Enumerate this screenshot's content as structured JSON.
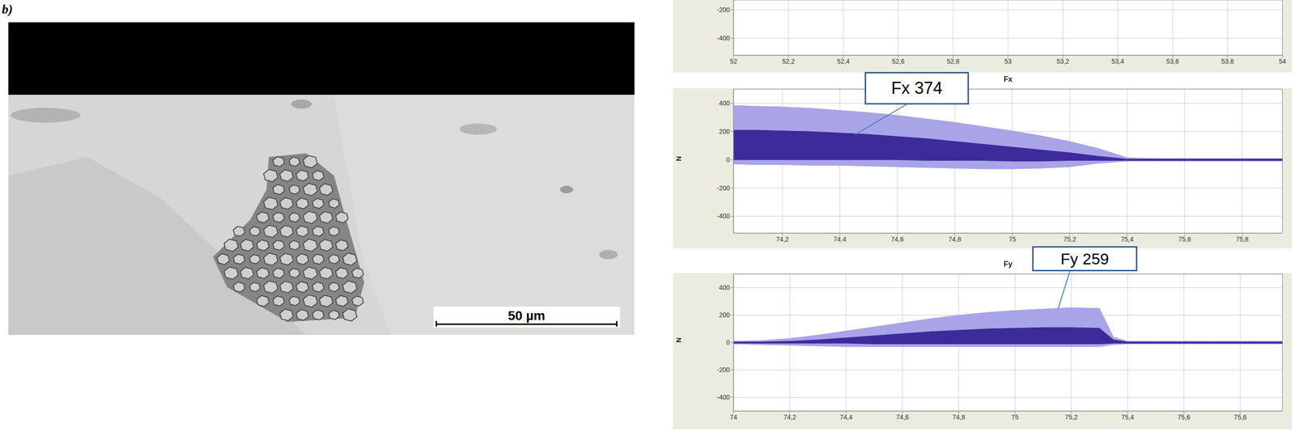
{
  "figure_label": "b)",
  "micrograph": {
    "scale_bar": "50 µm"
  },
  "chart_data": [
    {
      "type": "line",
      "xlim": [
        52,
        54
      ],
      "xticks": [
        52,
        {
          "value": 52.2,
          "label": "52,2"
        },
        {
          "value": 52.4,
          "label": "52,4"
        },
        {
          "value": 52.6,
          "label": "52,6"
        },
        {
          "value": 52.8,
          "label": "52,8"
        },
        53,
        {
          "value": 53.2,
          "label": "53,2"
        },
        {
          "value": 53.4,
          "label": "53,4"
        },
        {
          "value": 53.6,
          "label": "53,6"
        },
        {
          "value": 53.8,
          "label": "53,8"
        },
        54
      ],
      "ylim": [
        -520,
        -130
      ],
      "yticks": [
        -400,
        -200
      ],
      "grid": true
    },
    {
      "type": "area",
      "title": "Fx",
      "y_label": "N",
      "annotation": "Fx 374",
      "xlim": [
        74.03,
        75.94
      ],
      "xticks": [
        {
          "value": 74.2,
          "label": "74,2"
        },
        {
          "value": 74.4,
          "label": "74,4"
        },
        {
          "value": 74.6,
          "label": "74,6"
        },
        {
          "value": 74.8,
          "label": "74,8"
        },
        75,
        {
          "value": 75.2,
          "label": "75,2"
        },
        {
          "value": 75.4,
          "label": "75,4"
        },
        {
          "value": 75.6,
          "label": "75,6"
        },
        {
          "value": 75.8,
          "label": "75,8"
        }
      ],
      "ylim": [
        -520,
        500
      ],
      "yticks": [
        -400,
        -200,
        0,
        200,
        400
      ],
      "grid": true,
      "x": [
        74.03,
        74.1,
        74.2,
        74.3,
        74.4,
        74.5,
        74.6,
        74.7,
        74.8,
        74.9,
        75.0,
        75.1,
        75.2,
        75.3,
        75.4,
        75.5,
        75.6,
        75.7,
        75.8,
        75.94
      ],
      "series": [
        {
          "color": "#a9a3e8",
          "low": [
            -30,
            -35,
            -35,
            -40,
            -40,
            -45,
            -50,
            -55,
            -60,
            -65,
            -65,
            -60,
            -50,
            -25,
            -10,
            -10,
            -10,
            -10,
            -10,
            -10
          ],
          "high": [
            385,
            380,
            375,
            365,
            350,
            335,
            315,
            290,
            265,
            235,
            205,
            170,
            130,
            80,
            15,
            10,
            10,
            10,
            10,
            10
          ]
        },
        {
          "color": "#3d2b9c",
          "low": [
            0,
            0,
            0,
            0,
            0,
            0,
            0,
            -5,
            -5,
            -5,
            -10,
            -10,
            -5,
            -5,
            -5,
            -5,
            -5,
            -5,
            -5,
            -5
          ],
          "high": [
            210,
            210,
            205,
            200,
            190,
            180,
            165,
            150,
            130,
            110,
            90,
            70,
            50,
            25,
            5,
            5,
            5,
            5,
            5,
            5
          ]
        }
      ]
    },
    {
      "type": "area",
      "title": "Fy",
      "y_label": "N",
      "annotation": "Fy 259",
      "xlim": [
        74,
        75.95
      ],
      "xticks": [
        74,
        {
          "value": 74.2,
          "label": "74,2"
        },
        {
          "value": 74.4,
          "label": "74,4"
        },
        {
          "value": 74.6,
          "label": "74,6"
        },
        {
          "value": 74.8,
          "label": "74,8"
        },
        75,
        {
          "value": 75.2,
          "label": "75,2"
        },
        {
          "value": 75.4,
          "label": "75,4"
        },
        {
          "value": 75.6,
          "label": "75,6"
        },
        {
          "value": 75.8,
          "label": "75,8"
        }
      ],
      "ylim": [
        -500,
        500
      ],
      "yticks": [
        -400,
        -200,
        0,
        200,
        400
      ],
      "grid": true,
      "x": [
        74.0,
        74.1,
        74.2,
        74.3,
        74.4,
        74.5,
        74.6,
        74.7,
        74.8,
        74.9,
        75.0,
        75.1,
        75.2,
        75.3,
        75.35,
        75.4,
        75.5,
        75.6,
        75.7,
        75.8,
        75.9,
        75.95
      ],
      "series": [
        {
          "color": "#a9a3e8",
          "low": [
            -10,
            -15,
            -20,
            -25,
            -30,
            -30,
            -30,
            -30,
            -30,
            -30,
            -30,
            -30,
            -30,
            -30,
            -15,
            -10,
            -10,
            -10,
            -10,
            -10,
            -10,
            -10
          ],
          "high": [
            10,
            15,
            30,
            55,
            85,
            115,
            145,
            175,
            200,
            220,
            235,
            245,
            255,
            250,
            40,
            10,
            10,
            10,
            10,
            10,
            10,
            10
          ]
        },
        {
          "color": "#3d2b9c",
          "low": [
            -5,
            -5,
            -5,
            -5,
            -5,
            -10,
            -10,
            -10,
            -10,
            -10,
            -10,
            -10,
            -10,
            -10,
            -5,
            -5,
            -5,
            -5,
            -5,
            -5,
            -5,
            -5
          ],
          "high": [
            5,
            5,
            10,
            20,
            35,
            50,
            65,
            80,
            90,
            100,
            105,
            110,
            110,
            105,
            20,
            5,
            5,
            5,
            5,
            5,
            5,
            5
          ]
        }
      ]
    }
  ]
}
